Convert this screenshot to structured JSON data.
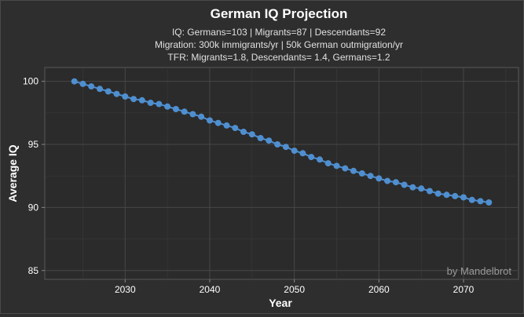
{
  "chart_data": {
    "type": "scatter",
    "title": "German IQ Projection",
    "subtitle": [
      "IQ: Germans=103 | Migrants=87 | Descendants=92",
      "Migration: 300k immigrants/yr | 50k German outmigration/yr",
      "TFR: Migrants=1.8, Descendants= 1.4, Germans=1.2"
    ],
    "xlabel": "Year",
    "ylabel": "Average  IQ",
    "xlim": [
      2020.5,
      2076.5
    ],
    "ylim": [
      84.3,
      101.1
    ],
    "xticks": [
      2030,
      2040,
      2050,
      2060,
      2070
    ],
    "yticks": [
      85,
      90,
      95,
      100
    ],
    "grid": true,
    "annotation": "by Mandelbrot",
    "series_color": "#4f8fd0",
    "x": [
      2024,
      2025,
      2026,
      2027,
      2028,
      2029,
      2030,
      2031,
      2032,
      2033,
      2034,
      2035,
      2036,
      2037,
      2038,
      2039,
      2040,
      2041,
      2042,
      2043,
      2044,
      2045,
      2046,
      2047,
      2048,
      2049,
      2050,
      2051,
      2052,
      2053,
      2054,
      2055,
      2056,
      2057,
      2058,
      2059,
      2060,
      2061,
      2062,
      2063,
      2064,
      2065,
      2066,
      2067,
      2068,
      2069,
      2070,
      2071,
      2072,
      2073
    ],
    "y": [
      100.0,
      99.8,
      99.6,
      99.4,
      99.2,
      99.0,
      98.8,
      98.6,
      98.5,
      98.3,
      98.2,
      98.0,
      97.8,
      97.6,
      97.4,
      97.2,
      96.9,
      96.7,
      96.5,
      96.3,
      96.0,
      95.8,
      95.5,
      95.3,
      95.0,
      94.8,
      94.5,
      94.3,
      94.0,
      93.8,
      93.5,
      93.3,
      93.1,
      92.9,
      92.7,
      92.5,
      92.3,
      92.1,
      92.0,
      91.8,
      91.6,
      91.5,
      91.3,
      91.1,
      91.0,
      90.9,
      90.8,
      90.6,
      90.5,
      90.4
    ]
  }
}
